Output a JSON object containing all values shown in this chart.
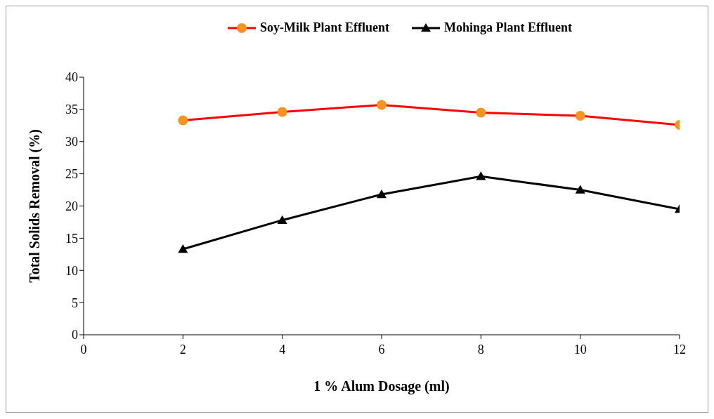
{
  "chart_data": {
    "type": "line",
    "xlabel": "1 % Alum Dosage (ml)",
    "ylabel": "Total Solids Removal (%)",
    "x": [
      2,
      4,
      6,
      8,
      10,
      12
    ],
    "series": [
      {
        "name": "Soy-Milk Plant Effluent",
        "color": "#ff0000",
        "colors": [
          "#f7941d",
          "#f7941d",
          "#f7941d",
          "#f7941d",
          "#f7941d",
          "#f7941d"
        ],
        "marker": "circle",
        "values": [
          33.3,
          34.6,
          35.7,
          34.5,
          34.0,
          32.6
        ]
      },
      {
        "name": "Mohinga Plant Effluent",
        "color": "#000000",
        "marker": "triangle",
        "values": [
          13.3,
          17.8,
          21.8,
          24.6,
          22.5,
          19.5
        ]
      }
    ],
    "xlim": [
      0,
      12
    ],
    "xticks": [
      0,
      2,
      4,
      6,
      8,
      10,
      12
    ],
    "ylim": [
      0,
      40
    ],
    "yticks": [
      0,
      5,
      10,
      15,
      20,
      25,
      30,
      35,
      40
    ],
    "legend": "top",
    "line_style": "solid"
  }
}
